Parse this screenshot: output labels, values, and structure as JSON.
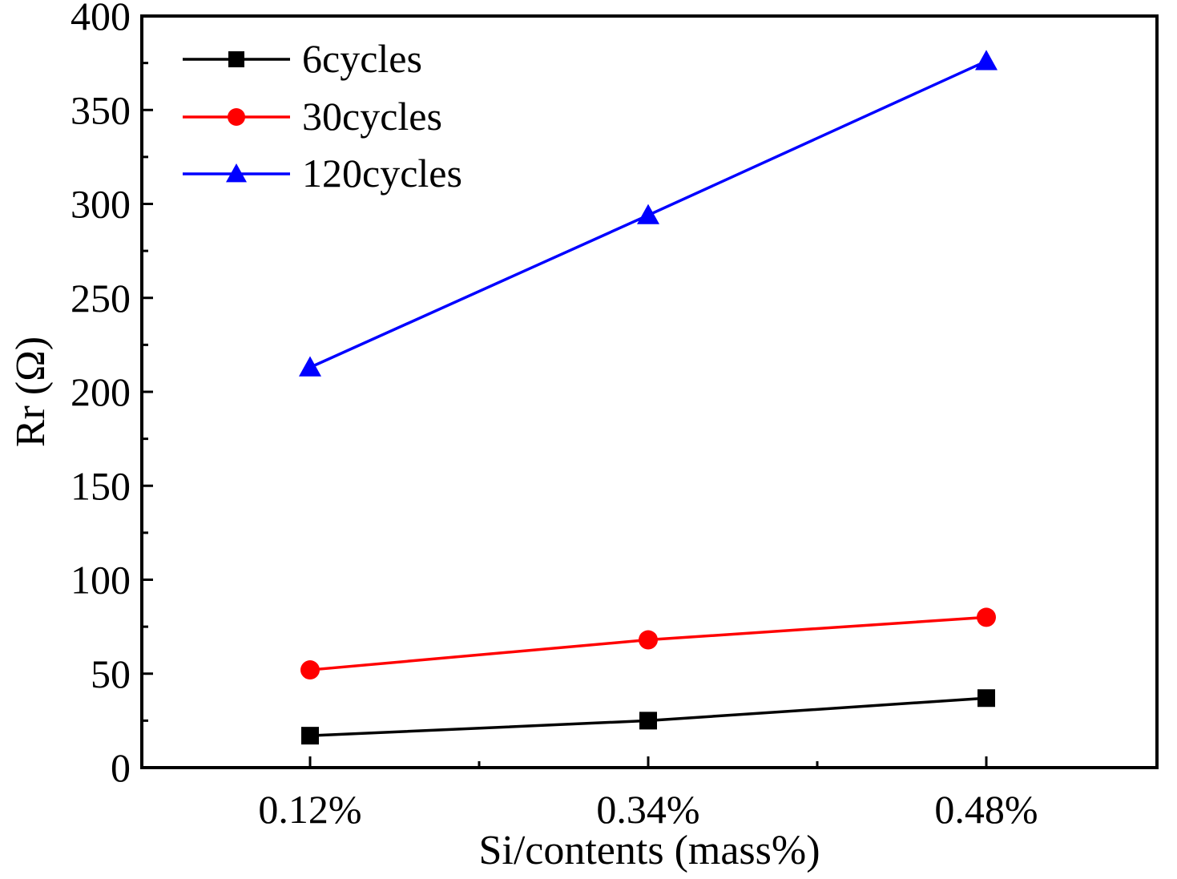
{
  "chart_data": {
    "type": "line",
    "title": "",
    "xlabel": "Si/contents (mass%)",
    "ylabel": "Rr (Ω)",
    "categories": [
      "0.12%",
      "0.34%",
      "0.48%"
    ],
    "ylim": [
      0,
      400
    ],
    "yticks": [
      0,
      50,
      100,
      150,
      200,
      250,
      300,
      350,
      400
    ],
    "grid": false,
    "legend_position": "top-left",
    "series": [
      {
        "name": "6cycles",
        "values": [
          17,
          25,
          37
        ],
        "color": "#000000",
        "marker": "square"
      },
      {
        "name": "30cycles",
        "values": [
          52,
          68,
          80
        ],
        "color": "#ff0000",
        "marker": "circle"
      },
      {
        "name": "120cycles",
        "values": [
          213,
          294,
          376
        ],
        "color": "#0000ff",
        "marker": "triangle"
      }
    ]
  }
}
